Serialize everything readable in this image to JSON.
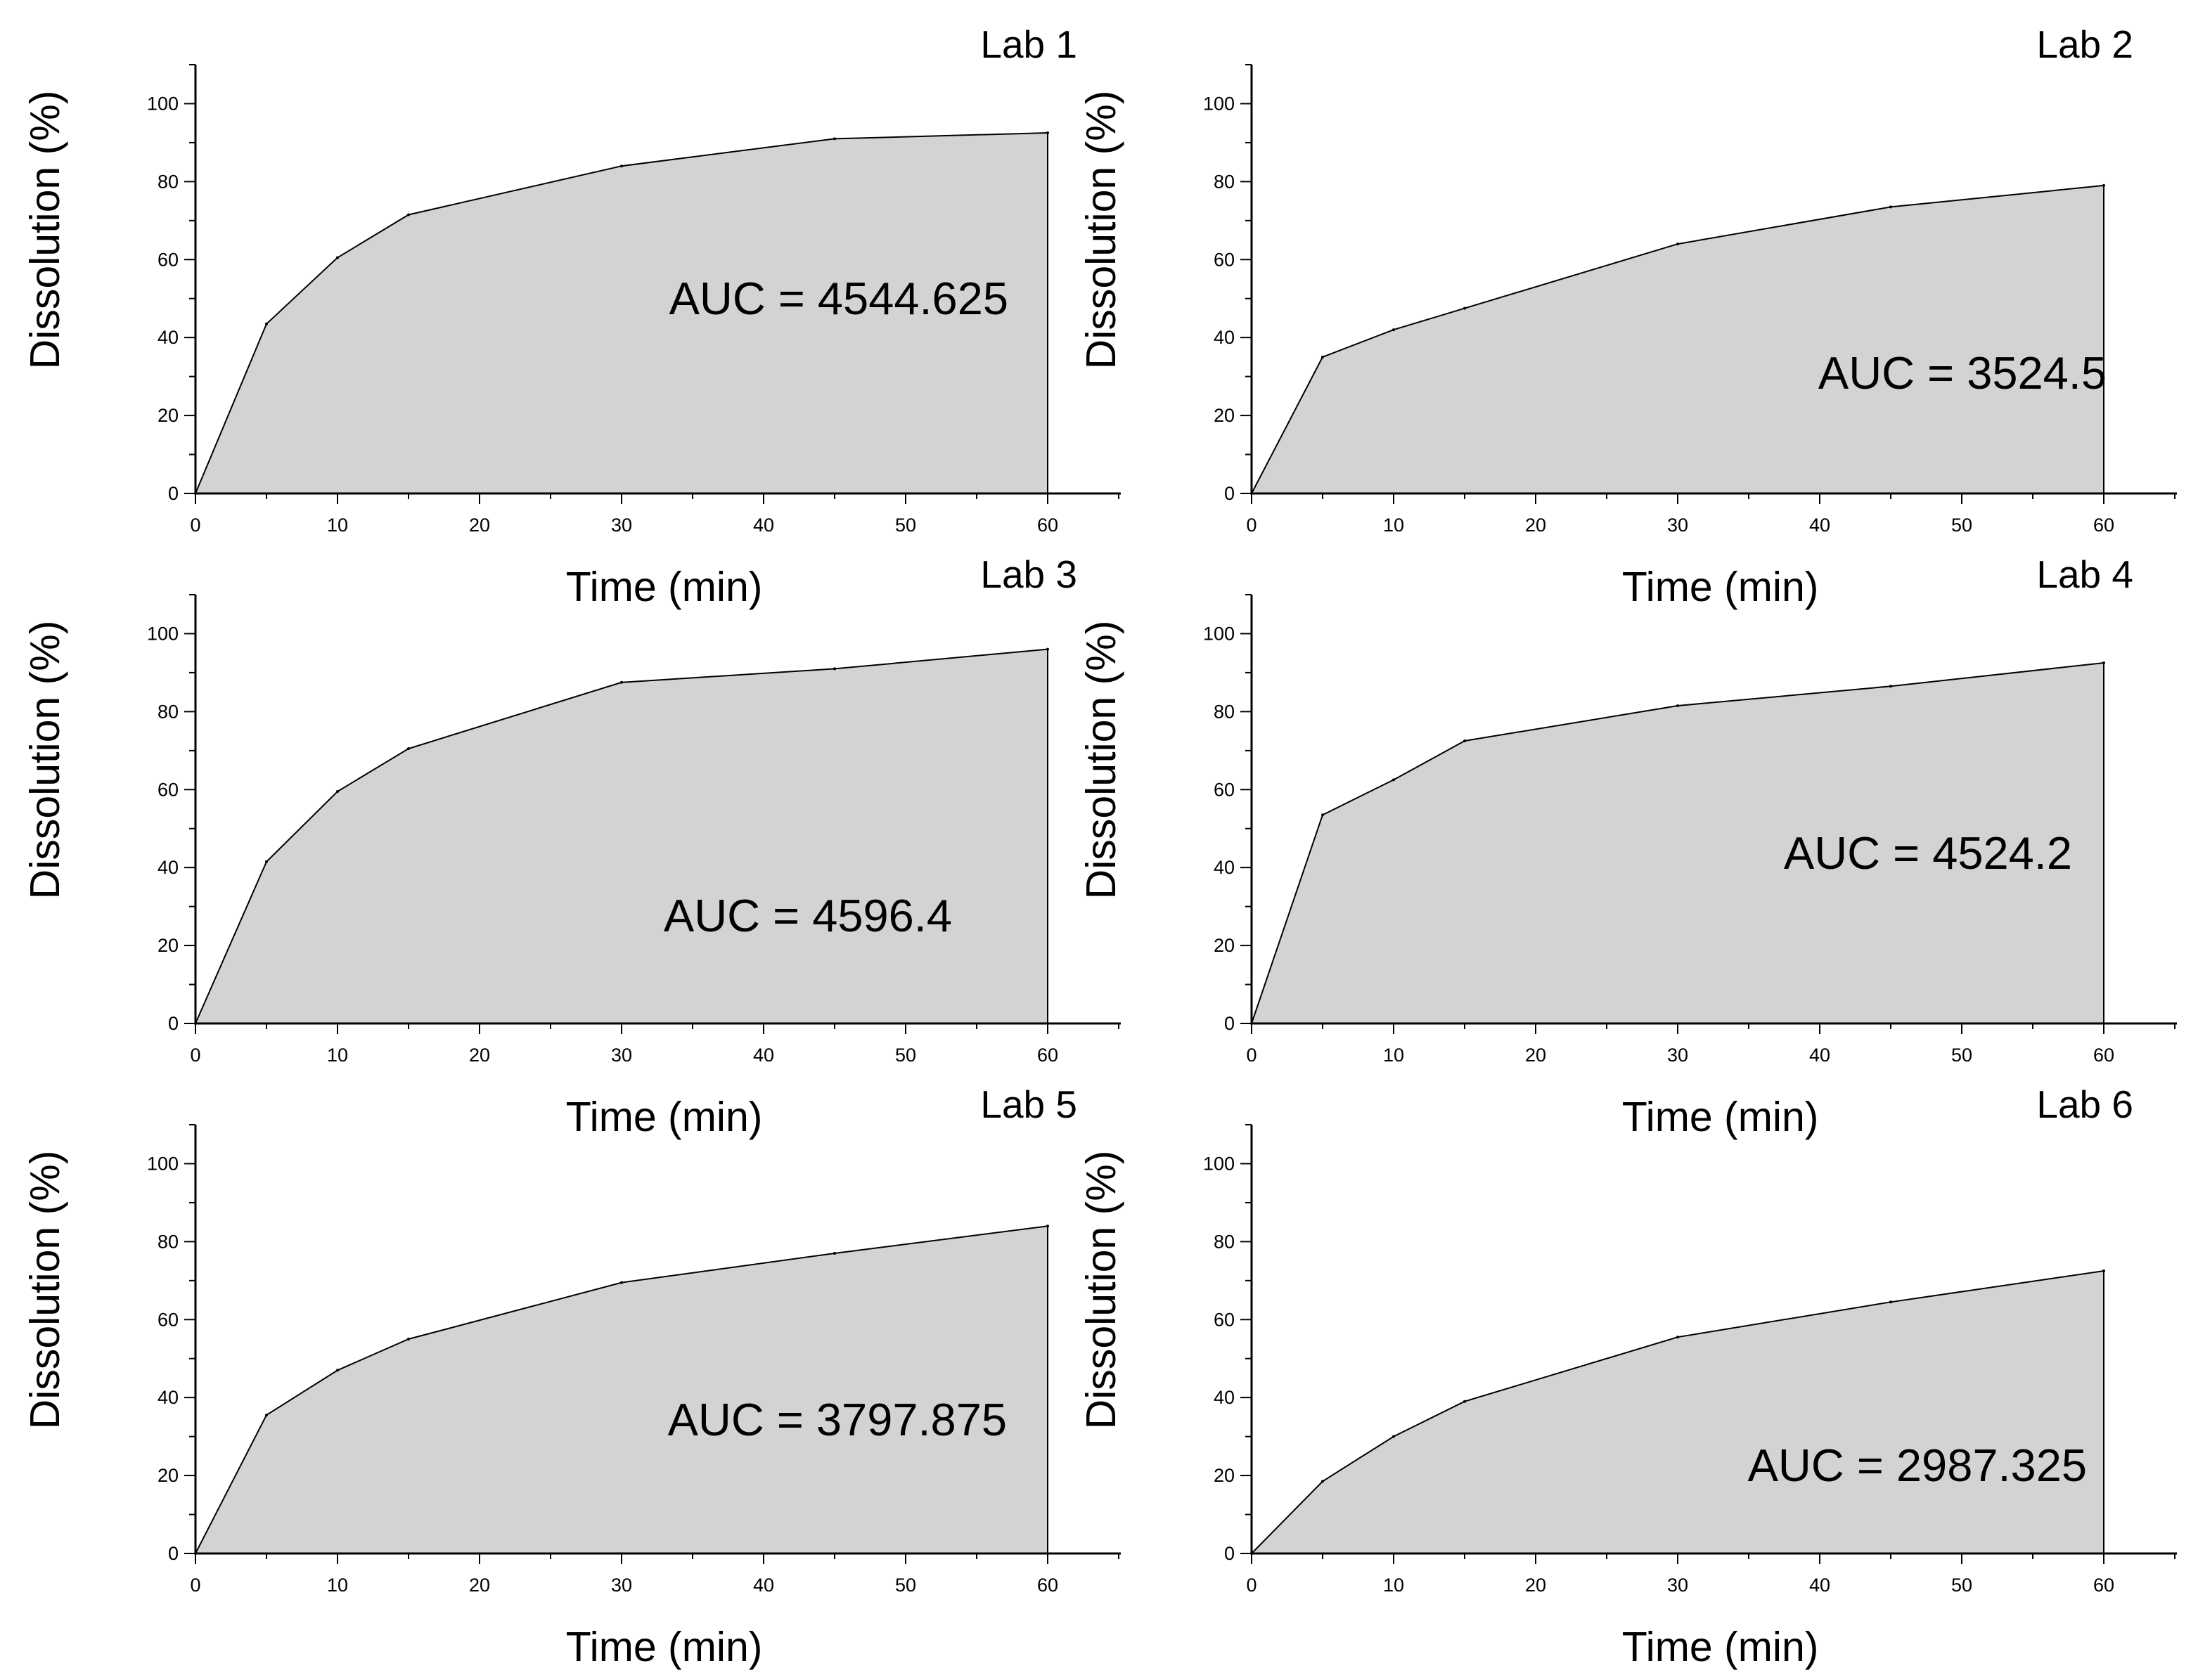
{
  "figure": {
    "background": "#ffffff",
    "fill_color": "#d3d3d3",
    "line_color": "#000000"
  },
  "chart_data": [
    {
      "type": "area",
      "title": "Lab 1",
      "annotation": "AUC = 4544.625",
      "xlabel": "Time (min)",
      "ylabel": "Dissolution (%)",
      "xlim": [
        0,
        65
      ],
      "ylim": [
        0,
        110
      ],
      "xticks": [
        "0",
        "10",
        "20",
        "30",
        "40",
        "50",
        "60"
      ],
      "yticks": [
        "0",
        "20",
        "40",
        "60",
        "80",
        "100"
      ],
      "grid": false,
      "x": [
        0,
        5,
        10,
        15,
        30,
        45,
        60
      ],
      "y": [
        0,
        43.5,
        60.5,
        71.5,
        84,
        91,
        92.5
      ]
    },
    {
      "type": "area",
      "title": "Lab 2",
      "annotation": "AUC = 3524.5",
      "xlabel": "Time (min)",
      "ylabel": "Dissolution (%)",
      "xlim": [
        0,
        65
      ],
      "ylim": [
        0,
        110
      ],
      "xticks": [
        "0",
        "10",
        "20",
        "30",
        "40",
        "50",
        "60"
      ],
      "yticks": [
        "0",
        "20",
        "40",
        "60",
        "80",
        "100"
      ],
      "grid": false,
      "x": [
        0,
        5,
        10,
        15,
        30,
        45,
        60
      ],
      "y": [
        0,
        35,
        42,
        47.5,
        64,
        73.5,
        79
      ]
    },
    {
      "type": "area",
      "title": "Lab 3",
      "annotation": "AUC = 4596.4",
      "xlabel": "Time (min)",
      "ylabel": "Dissolution (%)",
      "xlim": [
        0,
        65
      ],
      "ylim": [
        0,
        110
      ],
      "xticks": [
        "0",
        "10",
        "20",
        "30",
        "40",
        "50",
        "60"
      ],
      "yticks": [
        "0",
        "20",
        "40",
        "60",
        "80",
        "100"
      ],
      "grid": false,
      "x": [
        0,
        5,
        10,
        15,
        30,
        45,
        60
      ],
      "y": [
        0,
        41.5,
        59.5,
        70.5,
        87.5,
        91,
        96
      ]
    },
    {
      "type": "area",
      "title": "Lab 4",
      "annotation": "AUC = 4524.2",
      "xlabel": "Time (min)",
      "ylabel": "Dissolution (%)",
      "xlim": [
        0,
        65
      ],
      "ylim": [
        0,
        110
      ],
      "xticks": [
        "0",
        "10",
        "20",
        "30",
        "40",
        "50",
        "60"
      ],
      "yticks": [
        "0",
        "20",
        "40",
        "60",
        "80",
        "100"
      ],
      "grid": false,
      "x": [
        0,
        5,
        10,
        15,
        30,
        45,
        60
      ],
      "y": [
        0,
        53.5,
        62.5,
        72.5,
        81.5,
        86.5,
        92.5
      ]
    },
    {
      "type": "area",
      "title": "Lab 5",
      "annotation": "AUC = 3797.875",
      "xlabel": "Time (min)",
      "ylabel": "Dissolution (%)",
      "xlim": [
        0,
        65
      ],
      "ylim": [
        0,
        110
      ],
      "xticks": [
        "0",
        "10",
        "20",
        "30",
        "40",
        "50",
        "60"
      ],
      "yticks": [
        "0",
        "20",
        "40",
        "60",
        "80",
        "100"
      ],
      "grid": false,
      "x": [
        0,
        5,
        10,
        15,
        30,
        45,
        60
      ],
      "y": [
        0,
        35.5,
        47,
        55,
        69.5,
        77,
        84
      ]
    },
    {
      "type": "area",
      "title": "Lab 6",
      "annotation": "AUC = 2987.325",
      "xlabel": "Time (min)",
      "ylabel": "Dissolution (%)",
      "xlim": [
        0,
        65
      ],
      "ylim": [
        0,
        110
      ],
      "xticks": [
        "0",
        "10",
        "20",
        "30",
        "40",
        "50",
        "60"
      ],
      "yticks": [
        "0",
        "20",
        "40",
        "60",
        "80",
        "100"
      ],
      "grid": false,
      "x": [
        0,
        5,
        10,
        15,
        30,
        45,
        60
      ],
      "y": [
        0,
        18.5,
        30,
        39,
        55.5,
        64.5,
        72.5
      ]
    }
  ]
}
